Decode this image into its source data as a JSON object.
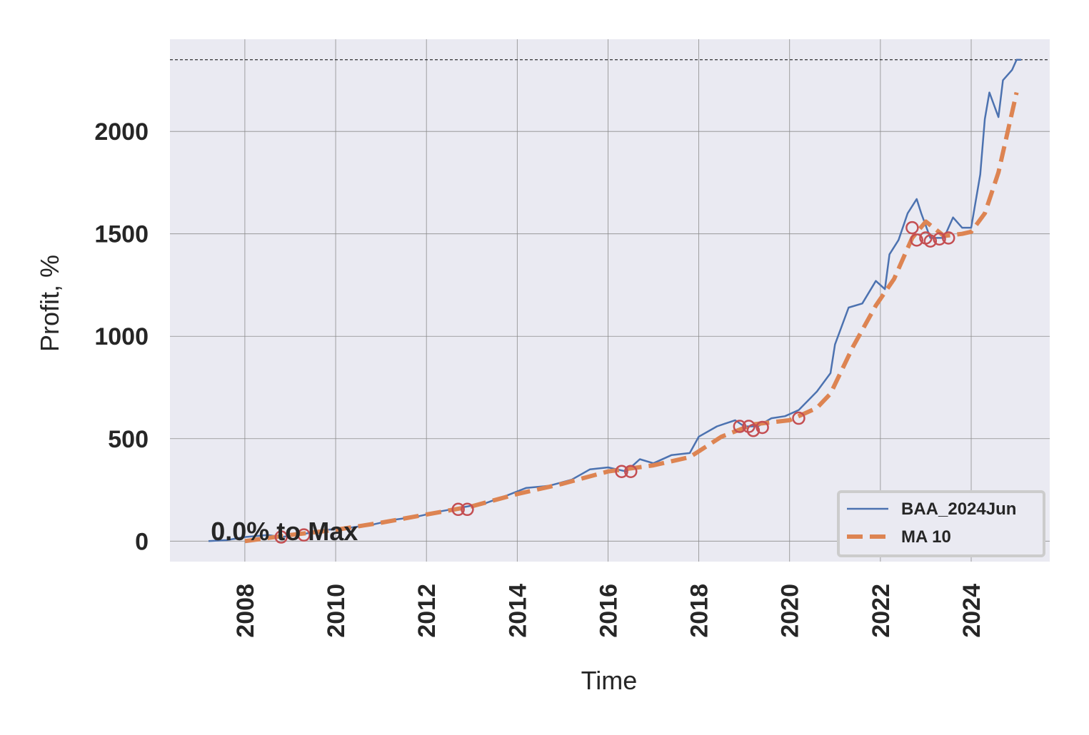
{
  "chart_data": {
    "type": "line",
    "x_label": "Time",
    "y_label": "Profit, %",
    "xlim": [
      2006.35,
      2025.73
    ],
    "ylim": [
      -100,
      2450
    ],
    "xticks": [
      2008,
      2010,
      2012,
      2014,
      2016,
      2018,
      2020,
      2022,
      2024
    ],
    "yticks": [
      0,
      500,
      1000,
      1500,
      2000
    ],
    "grid": true,
    "legend": "lower right",
    "max_line": 2350,
    "annotation": {
      "text": "0.0% to Max",
      "x": 2007.25,
      "y": 40
    },
    "series": [
      {
        "name": "BAA_2024Jun",
        "color": "#4c72b0",
        "style": "solid",
        "x": [
          2007.2,
          2007.6,
          2008.0,
          2008.5,
          2008.8,
          2009.3,
          2009.8,
          2010.3,
          2010.8,
          2011.3,
          2011.8,
          2012.3,
          2012.8,
          2013.3,
          2013.8,
          2014.2,
          2014.7,
          2015.2,
          2015.6,
          2016.0,
          2016.4,
          2016.7,
          2017.0,
          2017.4,
          2017.8,
          2018.0,
          2018.4,
          2018.8,
          2019.0,
          2019.3,
          2019.6,
          2019.9,
          2020.2,
          2020.6,
          2020.9,
          2021.0,
          2021.3,
          2021.6,
          2021.9,
          2022.1,
          2022.2,
          2022.4,
          2022.6,
          2022.8,
          2022.9,
          2023.1,
          2023.4,
          2023.6,
          2023.8,
          2024.0,
          2024.2,
          2024.3,
          2024.4,
          2024.6,
          2024.7,
          2024.9,
          2025.0,
          2025.1
        ],
        "values": [
          0,
          5,
          20,
          30,
          20,
          35,
          55,
          65,
          80,
          105,
          120,
          145,
          165,
          185,
          225,
          260,
          270,
          300,
          350,
          360,
          340,
          400,
          380,
          420,
          430,
          510,
          560,
          590,
          560,
          560,
          600,
          610,
          640,
          730,
          820,
          960,
          1140,
          1160,
          1270,
          1230,
          1400,
          1470,
          1600,
          1670,
          1600,
          1480,
          1480,
          1580,
          1530,
          1530,
          1790,
          2060,
          2190,
          2070,
          2250,
          2300,
          2350,
          2350
        ]
      },
      {
        "name": "MA 10",
        "color": "#dd8452",
        "style": "dashed",
        "x": [
          2008.0,
          2009.0,
          2010.0,
          2011.0,
          2012.0,
          2013.0,
          2014.0,
          2015.0,
          2016.0,
          2017.0,
          2017.8,
          2018.5,
          2019.2,
          2020.0,
          2020.6,
          2020.9,
          2021.4,
          2021.9,
          2022.3,
          2022.7,
          2023.0,
          2023.4,
          2023.8,
          2024.0,
          2024.3,
          2024.6,
          2025.0
        ],
        "values": [
          0,
          30,
          55,
          90,
          130,
          170,
          230,
          280,
          340,
          370,
          410,
          510,
          570,
          590,
          650,
          720,
          950,
          1150,
          1280,
          1480,
          1560,
          1490,
          1500,
          1510,
          1600,
          1800,
          2190
        ]
      }
    ],
    "markers": {
      "color": "#c44e52",
      "x": [
        2008.8,
        2009.3,
        2012.7,
        2012.9,
        2016.3,
        2016.5,
        2018.9,
        2019.1,
        2019.2,
        2019.4,
        2020.2,
        2022.7,
        2022.8,
        2023.0,
        2023.1,
        2023.3,
        2023.5
      ],
      "values": [
        20,
        30,
        155,
        155,
        340,
        340,
        560,
        560,
        540,
        555,
        600,
        1530,
        1470,
        1480,
        1465,
        1475,
        1480
      ]
    }
  }
}
